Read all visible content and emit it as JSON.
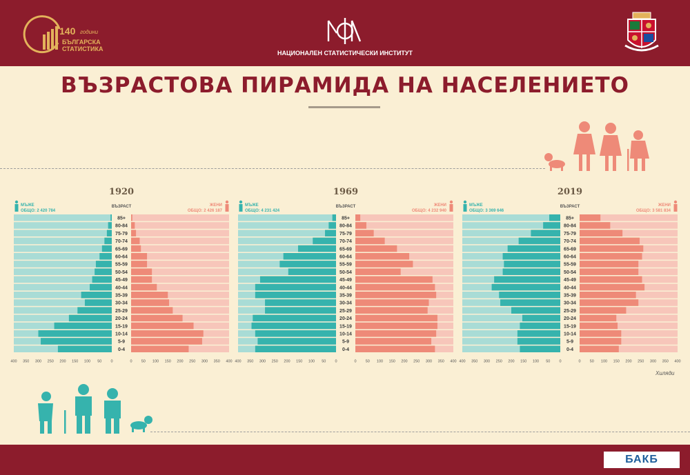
{
  "header": {
    "logo_number": "140",
    "logo_word": "години",
    "logo_line1": "БЪЛГАРСКА",
    "logo_line2": "СТАТИСТИКА",
    "institute": "НАЦИОНАЛЕН СТАТИСТИЧЕСКИ ИНСТИТУТ"
  },
  "title": "ВЪЗРАСТОВА ПИРАМИДА НА НАСЕЛЕНИЕТО",
  "unit_label": "Хиляди",
  "footer": {
    "brand": "БАКБ"
  },
  "colors": {
    "header_bg": "#8c1c2c",
    "page_bg": "#faefd4",
    "male": "#36b3ad",
    "male_light": "#a9dcd6",
    "female": "#ee8a78",
    "female_light": "#f7c6ba",
    "people_icons": "#36b3ad",
    "people_icons_top": "#ee8a78"
  },
  "chart_data": [
    {
      "type": "bar",
      "title": "1920",
      "male_label": "мъже",
      "male_total": "ОБЩО: 2 420 784",
      "female_label": "жени",
      "female_total": "ОБЩО: 2 426 187",
      "age_header": "ВЪЗРАСТ",
      "categories": [
        "85+",
        "80-84",
        "75-79",
        "70-74",
        "65-69",
        "60-64",
        "55-59",
        "50-54",
        "45-49",
        "40-44",
        "35-39",
        "30-34",
        "25-29",
        "20-24",
        "15-19",
        "10-14",
        "5-9",
        "0-4"
      ],
      "series": [
        {
          "name": "мъже",
          "values": [
            5,
            15,
            20,
            30,
            40,
            50,
            65,
            70,
            80,
            90,
            125,
            110,
            140,
            175,
            235,
            300,
            290,
            220
          ]
        },
        {
          "name": "жени",
          "values": [
            5,
            15,
            20,
            35,
            40,
            65,
            65,
            85,
            85,
            105,
            150,
            155,
            170,
            210,
            255,
            295,
            290,
            235
          ]
        }
      ],
      "xlim": [
        0,
        400
      ],
      "ticks": [
        400,
        350,
        300,
        250,
        200,
        150,
        100,
        50,
        0
      ]
    },
    {
      "type": "bar",
      "title": "1969",
      "male_label": "мъже",
      "male_total": "ОБЩО: 4 231 424",
      "female_label": "жени",
      "female_total": "ОБЩО: 4 232 940",
      "age_header": "ВЪЗРАСТ",
      "categories": [
        "85+",
        "80-84",
        "75-79",
        "70-74",
        "65-69",
        "60-64",
        "55-59",
        "50-54",
        "45-49",
        "40-44",
        "35-39",
        "30-34",
        "25-29",
        "20-24",
        "15-19",
        "10-14",
        "5-9",
        "0-4"
      ],
      "series": [
        {
          "name": "мъже",
          "values": [
            15,
            30,
            45,
            95,
            155,
            215,
            230,
            195,
            310,
            330,
            330,
            290,
            290,
            340,
            345,
            330,
            320,
            330
          ]
        },
        {
          "name": "жени",
          "values": [
            20,
            45,
            75,
            120,
            170,
            220,
            235,
            185,
            315,
            325,
            330,
            300,
            295,
            335,
            335,
            330,
            310,
            325
          ]
        }
      ],
      "xlim": [
        0,
        400
      ],
      "ticks": [
        400,
        350,
        300,
        250,
        200,
        150,
        100,
        50,
        0
      ]
    },
    {
      "type": "bar",
      "title": "2019",
      "male_label": "мъже",
      "male_total": "ОБЩО: 3 369 646",
      "female_label": "жени",
      "female_total": "ОБЩО: 3 581 834",
      "age_header": "ВЪЗРАСТ",
      "categories": [
        "85+",
        "80-84",
        "75-79",
        "70-74",
        "65-69",
        "60-64",
        "55-59",
        "50-54",
        "45-49",
        "40-44",
        "35-39",
        "30-34",
        "25-29",
        "20-24",
        "15-19",
        "10-14",
        "5-9",
        "0-4"
      ],
      "series": [
        {
          "name": "мъже",
          "values": [
            45,
            70,
            120,
            170,
            215,
            235,
            230,
            235,
            270,
            280,
            250,
            245,
            200,
            155,
            165,
            175,
            175,
            165
          ]
        },
        {
          "name": "жени",
          "values": [
            85,
            125,
            175,
            245,
            260,
            255,
            240,
            240,
            255,
            265,
            230,
            240,
            190,
            150,
            155,
            170,
            170,
            160
          ]
        }
      ],
      "xlim": [
        0,
        400
      ],
      "ticks": [
        400,
        350,
        300,
        250,
        200,
        150,
        100,
        50,
        0
      ]
    }
  ]
}
